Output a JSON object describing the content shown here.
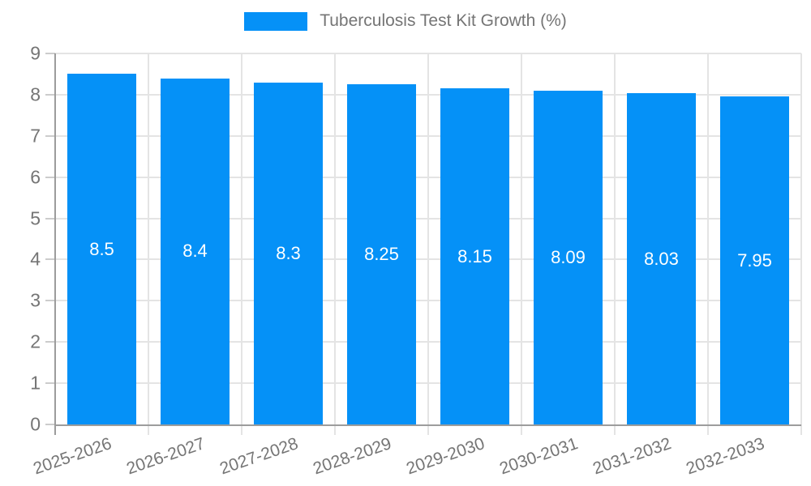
{
  "page": {
    "background": "#FFFFFF"
  },
  "legend": {
    "label": "Tuberculosis Test Kit Growth (%)",
    "swatch_color": "#0591F7"
  },
  "chart_data": {
    "type": "bar",
    "title": "Tuberculosis Test Kit Growth (%)",
    "categories": [
      "2025-2026",
      "2026-2027",
      "2027-2028",
      "2028-2029",
      "2029-2030",
      "2030-2031",
      "2031-2032",
      "2032-2033"
    ],
    "values": [
      8.5,
      8.4,
      8.3,
      8.25,
      8.15,
      8.09,
      8.03,
      7.95
    ],
    "value_labels": [
      "8.5",
      "8.4",
      "8.3",
      "8.25",
      "8.15",
      "8.09",
      "8.03",
      "7.95"
    ],
    "xlabel": "",
    "ylabel": "",
    "ylim": [
      0,
      9
    ],
    "y_ticks": [
      0,
      1,
      2,
      3,
      4,
      5,
      6,
      7,
      8,
      9
    ],
    "grid": true,
    "legend_position": "top-center",
    "x_tick_rotation_deg": -19,
    "colors": {
      "bar": "#0591F7",
      "value_label": "#FFFFFF",
      "axis_text": "#757575",
      "gridline": "#E4E4E4",
      "axis_line": "#9C9C9C"
    }
  }
}
